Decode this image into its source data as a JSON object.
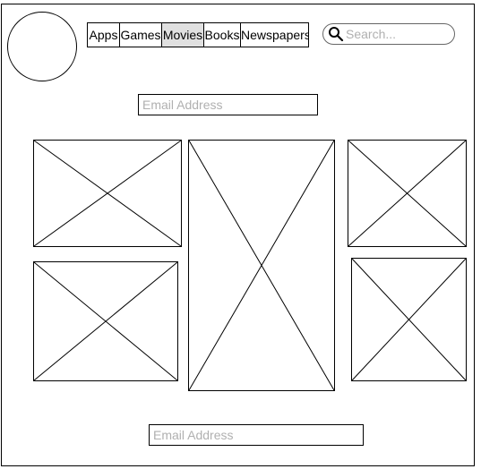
{
  "header": {
    "logo_icon": "circle-logo-icon",
    "tabs": [
      {
        "label": "Apps",
        "selected": false
      },
      {
        "label": "Games",
        "selected": false
      },
      {
        "label": "Movies",
        "selected": true
      },
      {
        "label": "Books",
        "selected": false
      },
      {
        "label": "Newspapers",
        "selected": false
      }
    ],
    "search": {
      "placeholder": "Search...",
      "value": "",
      "icon": "search-icon"
    }
  },
  "form": {
    "email_top": {
      "placeholder": "Email Address",
      "value": ""
    },
    "email_bottom": {
      "placeholder": "Email Address",
      "value": ""
    }
  },
  "gallery": {
    "image_icon": "image-placeholder-icon"
  },
  "colors": {
    "border": "#000000",
    "selected_tab_bg": "#e0e0e0",
    "placeholder_text": "#b0b0b0",
    "search_border": "#666666"
  }
}
